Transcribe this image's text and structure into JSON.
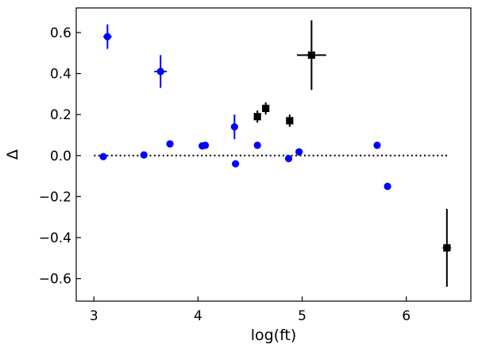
{
  "chart_data": {
    "type": "scatter",
    "xlabel": "log(ft)",
    "ylabel": "Δ",
    "xlim": [
      2.83,
      6.62
    ],
    "ylim": [
      -0.71,
      0.72
    ],
    "xticks": [
      3,
      4,
      5,
      6
    ],
    "yticks": [
      0.6,
      0.4,
      0.2,
      0.0,
      -0.2,
      -0.4,
      -0.6
    ],
    "xtick_labels": [
      "3",
      "4",
      "5",
      "6"
    ],
    "ytick_labels": [
      "0.6",
      "0.4",
      "0.2",
      "0.0",
      "−0.2",
      "−0.4",
      "−0.6"
    ],
    "grid": false,
    "reference_line": {
      "y": 0.0,
      "x_range": [
        3.0,
        6.4
      ],
      "style": "dotted",
      "color": "#000000"
    },
    "series": [
      {
        "marker": "circle",
        "color": "#0000ff",
        "points": [
          {
            "x": 3.09,
            "y": -0.005
          },
          {
            "x": 3.13,
            "y": 0.58,
            "yerr": 0.06,
            "xerr": 0.04
          },
          {
            "x": 3.48,
            "y": 0.003
          },
          {
            "x": 3.64,
            "y": 0.41,
            "yerr": 0.08,
            "xerr": 0.06
          },
          {
            "x": 3.73,
            "y": 0.057
          },
          {
            "x": 4.04,
            "y": 0.047
          },
          {
            "x": 4.07,
            "y": 0.05
          },
          {
            "x": 4.35,
            "y": 0.14,
            "yerr": 0.06
          },
          {
            "x": 4.36,
            "y": -0.04
          },
          {
            "x": 4.57,
            "y": 0.05
          },
          {
            "x": 4.87,
            "y": -0.015
          },
          {
            "x": 4.97,
            "y": 0.018
          },
          {
            "x": 5.72,
            "y": 0.05
          },
          {
            "x": 5.82,
            "y": -0.15
          }
        ]
      },
      {
        "marker": "square",
        "color": "#000000",
        "points": [
          {
            "x": 4.57,
            "y": 0.19,
            "yerr": 0.03
          },
          {
            "x": 4.65,
            "y": 0.23,
            "yerr": 0.03
          },
          {
            "x": 4.88,
            "y": 0.17,
            "yerr": 0.03
          },
          {
            "x": 5.09,
            "y": 0.49,
            "yerr": 0.17,
            "xerr": 0.14
          },
          {
            "x": 6.39,
            "y": -0.45,
            "yerr": 0.19,
            "xerr": 0.04
          }
        ]
      }
    ]
  }
}
